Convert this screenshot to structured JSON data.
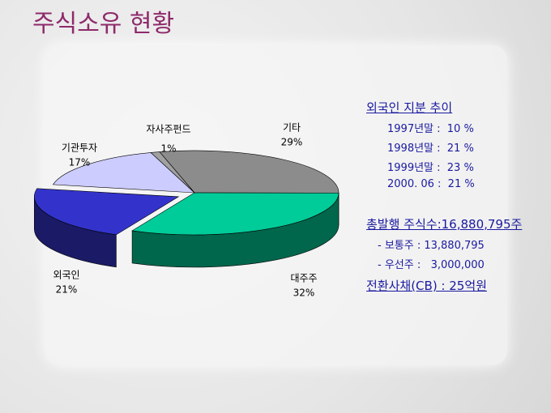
{
  "chart_data": {
    "type": "pie",
    "title": "주식소유 현황",
    "categories": [
      "기타",
      "대주주",
      "외국인",
      "기관투자",
      "자사주펀드"
    ],
    "values": [
      29,
      32,
      21,
      17,
      1
    ],
    "value_labels": [
      "29%",
      "32%",
      "21%",
      "17%",
      "1%"
    ],
    "colors": [
      "#8c8c8c",
      "#00cc99",
      "#3333cc",
      "#ccccff",
      "#a0a0a0"
    ],
    "exploded": [
      false,
      false,
      true,
      false,
      false
    ]
  },
  "side_panel": {
    "heading1": "외국인 지분 추이",
    "rows": [
      "1997년말 :  10 %",
      "1998년말 :  21 %",
      "1999년말 :  23 %",
      "2000. 06 :  21 %"
    ],
    "heading2": "총발행 주식수:16,880,795주",
    "sub": [
      "- 보통주 : 13,880,795",
      "- 우선주 :   3,000,000"
    ],
    "heading3": "전환사채(CB) : 25억원"
  }
}
